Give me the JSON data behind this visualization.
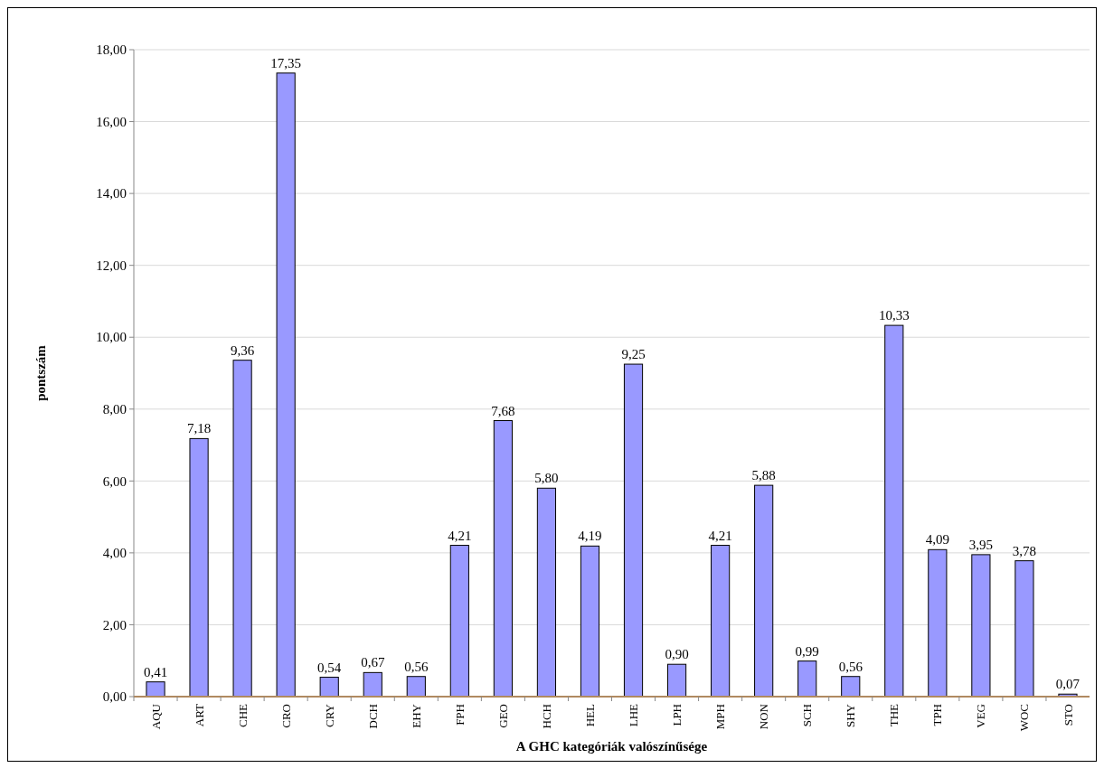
{
  "chart_data": {
    "type": "bar",
    "xlabel": "A GHC kategóriák valószínűsége",
    "ylabel": "pontszám",
    "categories": [
      "AQU",
      "ART",
      "CHE",
      "CRO",
      "CRY",
      "DCH",
      "EHY",
      "FPH",
      "GEO",
      "HCH",
      "HEL",
      "LHE",
      "LPH",
      "MPH",
      "NON",
      "SCH",
      "SHY",
      "THE",
      "TPH",
      "VEG",
      "WOC",
      "STO"
    ],
    "values": [
      0.41,
      7.18,
      9.36,
      17.35,
      0.54,
      0.67,
      0.56,
      4.21,
      7.68,
      5.8,
      4.19,
      9.25,
      0.9,
      4.21,
      5.88,
      0.99,
      0.56,
      10.33,
      4.09,
      3.95,
      3.78,
      0.07
    ],
    "value_labels": [
      "0,41",
      "7,18",
      "9,36",
      "17,35",
      "0,54",
      "0,67",
      "0,56",
      "4,21",
      "7,68",
      "5,80",
      "4,19",
      "9,25",
      "0,90",
      "4,21",
      "5,88",
      "0,99",
      "0,56",
      "10,33",
      "4,09",
      "3,95",
      "3,78",
      "0,07"
    ],
    "color": "#9999ff",
    "ylim": [
      0,
      18
    ],
    "yticks": [
      {
        "value": 0,
        "label": "0,00"
      },
      {
        "value": 2,
        "label": "2,00"
      },
      {
        "value": 4,
        "label": "4,00"
      },
      {
        "value": 6,
        "label": "6,00"
      },
      {
        "value": 8,
        "label": "8,00"
      },
      {
        "value": 10,
        "label": "10,00"
      },
      {
        "value": 12,
        "label": "12,00"
      },
      {
        "value": 14,
        "label": "14,00"
      },
      {
        "value": 16,
        "label": "16,00"
      },
      {
        "value": 18,
        "label": "18,00"
      }
    ],
    "grid": "y"
  }
}
